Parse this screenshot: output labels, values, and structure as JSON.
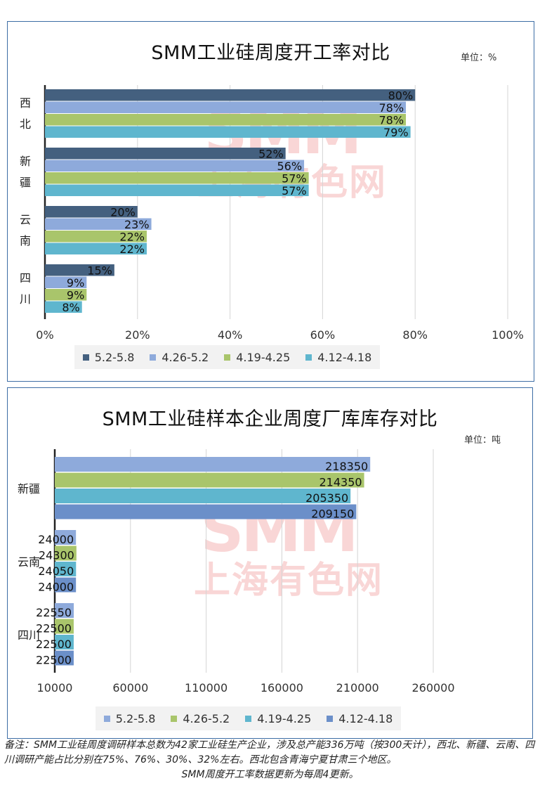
{
  "chart1": {
    "title": "SMM工业硅周度开工率对比",
    "unit": "单位：%",
    "chart_data": {
      "type": "bar",
      "orientation": "horizontal",
      "categories": [
        "西北",
        "新疆",
        "云南",
        "四川"
      ],
      "series": [
        {
          "name": "5.2-5.8",
          "color": "#44607f",
          "values": [
            80,
            52,
            20,
            15
          ]
        },
        {
          "name": "4.26-5.2",
          "color": "#8eaadb",
          "values": [
            78,
            56,
            23,
            9
          ]
        },
        {
          "name": "4.19-4.25",
          "color": "#a9c56b",
          "values": [
            78,
            57,
            22,
            9
          ]
        },
        {
          "name": "4.12-4.18",
          "color": "#5fb6ce",
          "values": [
            79,
            57,
            22,
            8
          ]
        }
      ],
      "data_labels": [
        [
          "80%",
          "78%",
          "78%",
          "79%"
        ],
        [
          "52%",
          "56%",
          "57%",
          "57%"
        ],
        [
          "20%",
          "23%",
          "22%",
          "22%"
        ],
        [
          "15%",
          "9%",
          "9%",
          "8%"
        ]
      ],
      "xlim": [
        0,
        100
      ],
      "xticks": [
        0,
        20,
        40,
        60,
        80,
        100
      ],
      "xtick_labels": [
        "0%",
        "20%",
        "40%",
        "60%",
        "80%",
        "100%"
      ],
      "grid": "vertical",
      "legend": "bottom"
    }
  },
  "chart2": {
    "title": "SMM工业硅样本企业周度厂库库存对比",
    "unit": "单位：吨",
    "chart_data": {
      "type": "bar",
      "orientation": "horizontal",
      "categories": [
        "新疆",
        "云南",
        "四川"
      ],
      "series": [
        {
          "name": "5.2-5.8",
          "color": "#8eaadb",
          "values": [
            218350,
            24000,
            22550
          ]
        },
        {
          "name": "4.26-5.2",
          "color": "#a9c56b",
          "values": [
            214350,
            24300,
            22500
          ]
        },
        {
          "name": "4.19-4.25",
          "color": "#5fb6ce",
          "values": [
            205350,
            24050,
            22500
          ]
        },
        {
          "name": "4.12-4.18",
          "color": "#6b8fc9",
          "values": [
            209150,
            24000,
            22500
          ]
        }
      ],
      "data_labels": [
        [
          "218350",
          "214350",
          "205350",
          "209150"
        ],
        [
          "24000",
          "24300",
          "24050",
          "24000"
        ],
        [
          "22550",
          "22500",
          "22500",
          "22500"
        ]
      ],
      "xlim": [
        10000,
        260000
      ],
      "xticks": [
        10000,
        60000,
        110000,
        160000,
        210000,
        260000
      ],
      "xtick_labels": [
        "10000",
        "60000",
        "110000",
        "160000",
        "210000",
        "260000"
      ],
      "grid": "vertical",
      "legend": "bottom"
    }
  },
  "watermark": {
    "brand": "SMM",
    "name": "上海有色网"
  },
  "footnote": {
    "line1": "备注：SMM工业硅周度调研样本总数为42家工业硅生产企业，涉及总产能336万吨（按300天计），西北、新疆、云南、四川调研产能占比分别在75%、76%、30%、32%左右。西北包含青海宁夏甘肃三个地区。",
    "line2": "SMM周度开工率数据更新为每周4更新。"
  }
}
